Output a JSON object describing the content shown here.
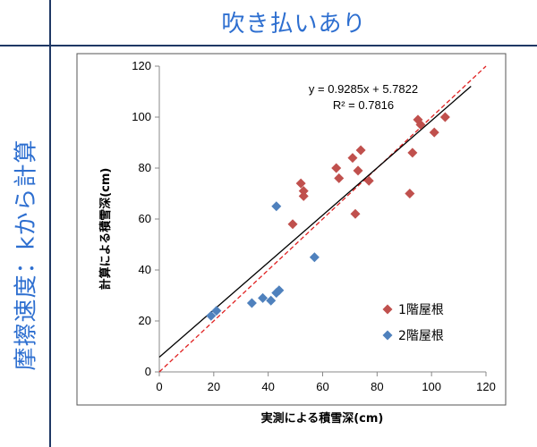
{
  "header": {
    "title": "吹き払いあり"
  },
  "side": {
    "title": "摩擦速度：kから計算"
  },
  "colors": {
    "title": "#2e6fd0",
    "series1": "#c0504d",
    "series2": "#4f81bd",
    "trend": "#000000",
    "identity": "#e02020"
  },
  "chart_data": {
    "type": "scatter",
    "xlabel": "実測による積雪深(cm)",
    "ylabel": "計算による積雪深(cm)",
    "xlim": [
      0,
      120
    ],
    "ylim": [
      0,
      120
    ],
    "xticks": [
      0,
      20,
      40,
      60,
      80,
      100,
      120
    ],
    "yticks": [
      0,
      20,
      40,
      60,
      80,
      100,
      120
    ],
    "grid": false,
    "legend_position": "lower-right",
    "trendline": {
      "slope": 0.9285,
      "intercept": 5.7822,
      "equation": "y = 0.9285x + 5.7822",
      "r2": "R² = 0.7816"
    },
    "identity_line": true,
    "series": [
      {
        "name": "1階屋根",
        "marker": "diamond",
        "color": "#c0504d",
        "x": [
          49,
          52,
          53,
          53,
          65,
          66,
          71,
          72,
          73,
          74,
          77,
          92,
          93,
          95,
          96,
          101,
          105
        ],
        "y": [
          58,
          74,
          69,
          71,
          80,
          76,
          84,
          62,
          79,
          87,
          75,
          70,
          86,
          99,
          97,
          94,
          100
        ]
      },
      {
        "name": "2階屋根",
        "marker": "diamond",
        "color": "#4f81bd",
        "x": [
          19,
          21,
          34,
          38,
          41,
          43,
          43,
          44,
          57
        ],
        "y": [
          22,
          24,
          27,
          29,
          28,
          31,
          65,
          32,
          45
        ]
      }
    ]
  }
}
